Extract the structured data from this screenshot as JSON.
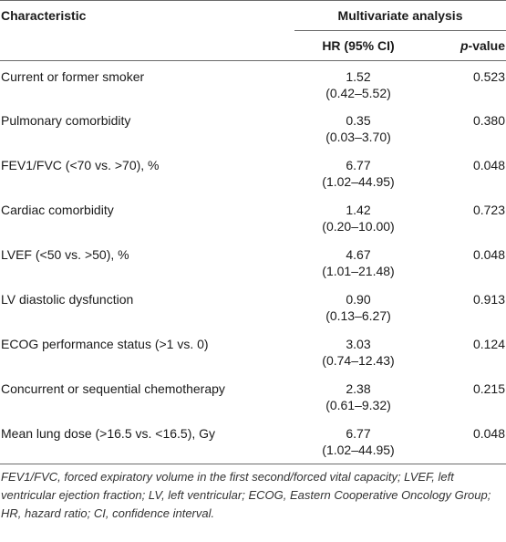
{
  "header": {
    "characteristic": "Characteristic",
    "multivariate": "Multivariate analysis",
    "hr": "HR (95% CI)",
    "p_italic": "p",
    "p_suffix": "-value"
  },
  "rows": [
    {
      "char": "Current or former smoker",
      "hr": "1.52",
      "ci": "(0.42–5.52)",
      "p": "0.523"
    },
    {
      "char": "Pulmonary comorbidity",
      "hr": "0.35",
      "ci": "(0.03–3.70)",
      "p": "0.380"
    },
    {
      "char": "FEV1/FVC (<70 vs. >70), %",
      "hr": "6.77",
      "ci": "(1.02–44.95)",
      "p": "0.048"
    },
    {
      "char": "Cardiac comorbidity",
      "hr": "1.42",
      "ci": "(0.20–10.00)",
      "p": "0.723"
    },
    {
      "char": "LVEF (<50 vs. >50), %",
      "hr": "4.67",
      "ci": "(1.01–21.48)",
      "p": "0.048"
    },
    {
      "char": "LV diastolic dysfunction",
      "hr": "0.90",
      "ci": "(0.13–6.27)",
      "p": "0.913"
    },
    {
      "char": "ECOG performance status (>1 vs. 0)",
      "hr": "3.03",
      "ci": "(0.74–12.43)",
      "p": "0.124"
    },
    {
      "char": "Concurrent or sequential chemotherapy",
      "hr": "2.38",
      "ci": "(0.61–9.32)",
      "p": "0.215"
    },
    {
      "char": "Mean lung dose (>16.5 vs. <16.5), Gy",
      "hr": "6.77",
      "ci": "(1.02–44.95)",
      "p": "0.048"
    }
  ],
  "footnote": "FEV1/FVC, forced expiratory volume in the first second/forced vital capacity; LVEF, left ventricular ejection fraction; LV, left ventricular; ECOG, Eastern Cooperative Oncology Group; HR, hazard ratio; CI, confidence interval."
}
